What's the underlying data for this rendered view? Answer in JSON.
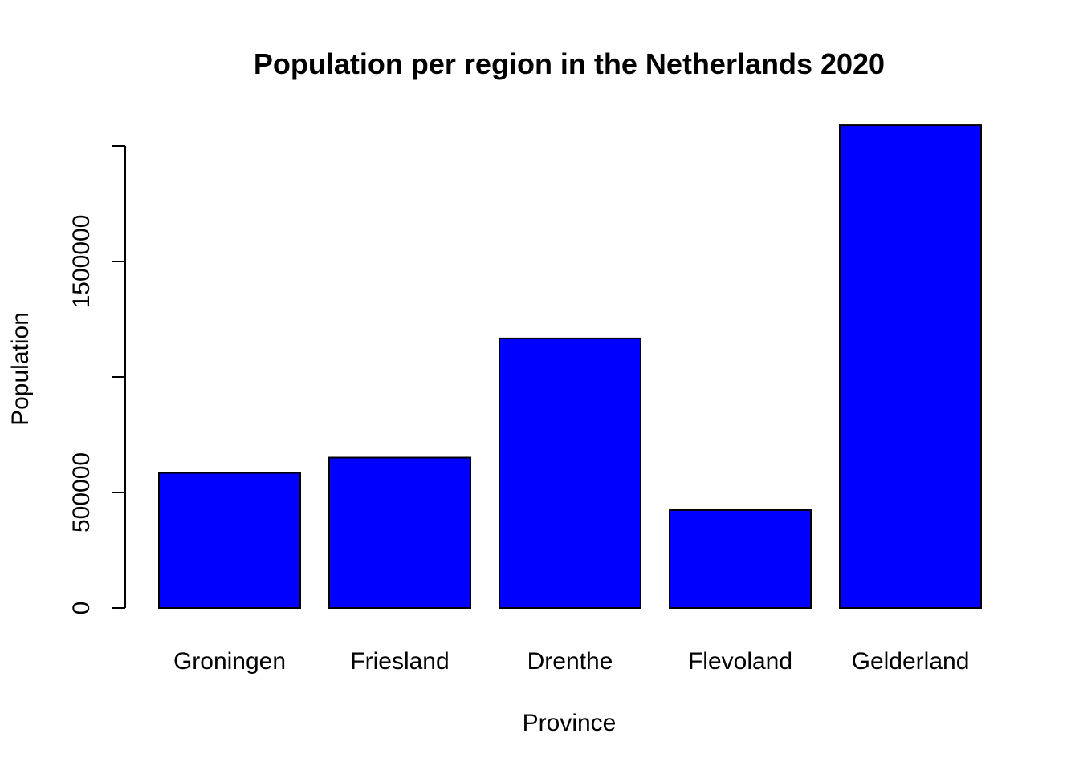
{
  "chart_data": {
    "type": "bar",
    "title": "Population per region in the Netherlands 2020",
    "xlabel": "Province",
    "ylabel": "Population",
    "categories": [
      "Groningen",
      "Friesland",
      "Drenthe",
      "Flevoland",
      "Gelderland"
    ],
    "values": [
      585000,
      651000,
      1167000,
      424000,
      2090000
    ],
    "ylim": [
      0,
      2000000
    ],
    "yticks": [
      0,
      500000,
      1000000,
      1500000,
      2000000
    ],
    "ytick_labels": [
      "0",
      "500000",
      "",
      "1500000",
      ""
    ],
    "grid": false,
    "legend": "none",
    "bar_color": "#0000ff"
  }
}
